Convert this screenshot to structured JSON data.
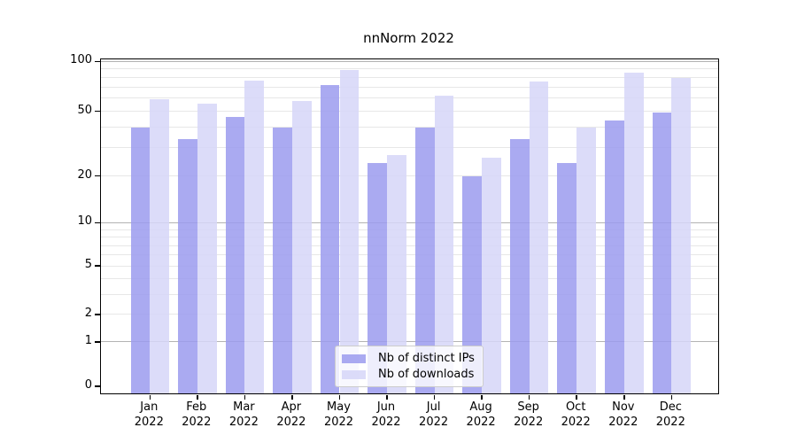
{
  "chart_data": {
    "type": "bar",
    "title": "nnNorm 2022",
    "categories": [
      "Jan",
      "Feb",
      "Mar",
      "Apr",
      "May",
      "Jun",
      "Jul",
      "Aug",
      "Sep",
      "Oct",
      "Nov",
      "Dec"
    ],
    "year_label": "2022",
    "series": [
      {
        "name": "Nb of distinct IPs",
        "color": "#9b9bef",
        "values": [
          40,
          34,
          46,
          40,
          72,
          24,
          40,
          20,
          34,
          24,
          44,
          49
        ]
      },
      {
        "name": "Nb of downloads",
        "color": "#d6d6f8",
        "values": [
          59,
          56,
          77,
          58,
          89,
          27,
          62,
          26,
          76,
          40,
          86,
          80
        ]
      }
    ],
    "bar_opacity": 0.85,
    "y_axis": {
      "tick_values": [
        0,
        1,
        2,
        5,
        10,
        20,
        50,
        100
      ],
      "tick_labels": [
        "0",
        "1",
        "2",
        "5",
        "10",
        "20",
        "50",
        "100"
      ],
      "major_gridlines": [
        1,
        10,
        100
      ],
      "minor_gridlines": [
        2,
        3,
        4,
        5,
        6,
        7,
        8,
        9,
        20,
        30,
        40,
        50,
        60,
        70,
        80,
        90
      ],
      "scale": "log-like: y proportional to log10((v+1.2)/1.2)",
      "range": [
        0,
        105
      ]
    },
    "legend": {
      "position": "bottom-center",
      "entries": [
        "Nb of distinct IPs",
        "Nb of downloads"
      ]
    },
    "grid": "on",
    "colors": {
      "major_grid": "#b3b3b3",
      "minor_grid": "#e7e7e7",
      "spine": "#000000",
      "text": "#000000",
      "legend_border": "#cccccc",
      "background": "#ffffff"
    }
  }
}
